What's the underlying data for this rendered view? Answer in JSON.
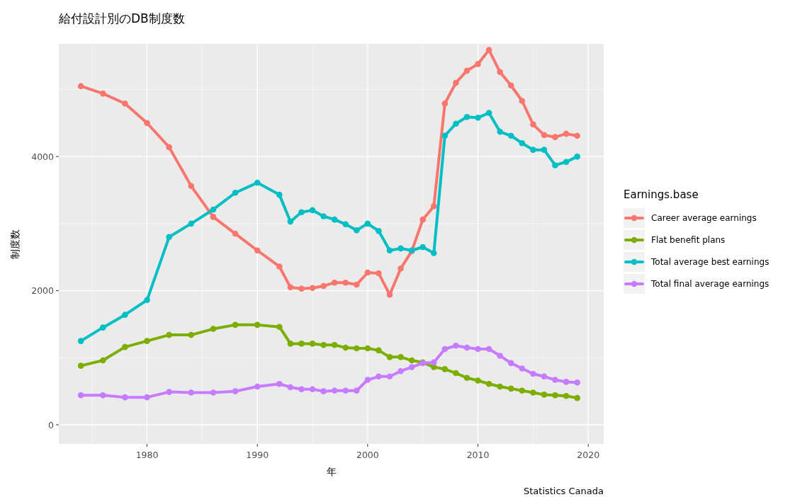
{
  "chart_data": {
    "type": "line",
    "title": "給付設計別のDB制度数",
    "xlabel": "年",
    "ylabel": "制度数",
    "legend_title": "Earnings.base",
    "annotations": [
      "Statistics Canada"
    ],
    "x": [
      1974,
      1976,
      1978,
      1980,
      1982,
      1984,
      1986,
      1988,
      1990,
      1992,
      1993,
      1994,
      1995,
      1996,
      1997,
      1998,
      1999,
      2000,
      2001,
      2002,
      2003,
      2004,
      2005,
      2006,
      2007,
      2008,
      2009,
      2010,
      2011,
      2012,
      2013,
      2014,
      2015,
      2016,
      2017,
      2018,
      2019
    ],
    "series": [
      {
        "name": "Career average earnings",
        "color": "#f8766d",
        "values": [
          5050,
          4940,
          4790,
          4500,
          4140,
          3560,
          3100,
          2850,
          2600,
          2360,
          2050,
          2030,
          2040,
          2070,
          2120,
          2120,
          2090,
          2270,
          2260,
          1940,
          2330,
          2590,
          3060,
          3260,
          4790,
          5100,
          5280,
          5380,
          5590,
          5260,
          5060,
          4830,
          4480,
          4320,
          4290,
          4340,
          4310
        ]
      },
      {
        "name": "Flat benefit plans",
        "color": "#7cae00",
        "values": [
          880,
          960,
          1160,
          1250,
          1340,
          1340,
          1430,
          1490,
          1490,
          1460,
          1210,
          1210,
          1210,
          1190,
          1190,
          1150,
          1140,
          1140,
          1110,
          1010,
          1010,
          960,
          930,
          860,
          830,
          770,
          700,
          660,
          610,
          570,
          540,
          510,
          480,
          450,
          440,
          430,
          400
        ]
      },
      {
        "name": "Total average best earnings",
        "color": "#00bfc4",
        "values": [
          1250,
          1450,
          1640,
          1860,
          2800,
          3000,
          3210,
          3460,
          3610,
          3430,
          3030,
          3170,
          3200,
          3110,
          3060,
          2990,
          2900,
          3000,
          2890,
          2600,
          2630,
          2600,
          2650,
          2560,
          4310,
          4490,
          4590,
          4580,
          4650,
          4370,
          4310,
          4200,
          4100,
          4100,
          3870,
          3920,
          4000
        ]
      },
      {
        "name": "Total final average earnings",
        "color": "#c77cff",
        "values": [
          440,
          440,
          410,
          410,
          490,
          480,
          480,
          500,
          570,
          610,
          560,
          530,
          530,
          500,
          510,
          510,
          510,
          670,
          720,
          720,
          800,
          860,
          920,
          930,
          1130,
          1180,
          1150,
          1130,
          1130,
          1030,
          920,
          840,
          760,
          720,
          670,
          640,
          630
        ]
      }
    ],
    "xlim": [
      1972,
      2021.4
    ],
    "ylim": [
      -285,
      5680
    ],
    "xticks": [
      1980,
      1990,
      2000,
      2010,
      2020
    ],
    "yticks": [
      0,
      2000,
      4000
    ],
    "grid": true,
    "legend": "right",
    "marker": "circle",
    "line_style": "solid"
  }
}
